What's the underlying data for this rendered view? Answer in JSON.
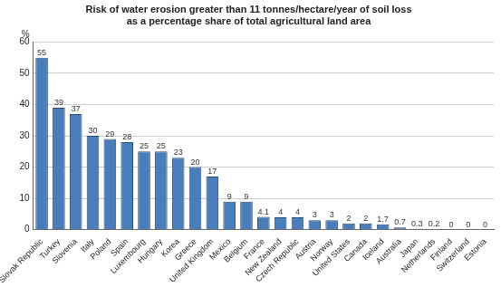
{
  "chart_data": {
    "type": "bar",
    "title": [
      "Risk of water erosion greater than 11 tonnes/hectare/year of soil loss",
      "as a percentage share of total agricultural land area"
    ],
    "ylabel": "%",
    "categories": [
      "Slovak Republic",
      "Turkey",
      "Slovenia",
      "Italy",
      "Poland",
      "Spain",
      "Luxembourg",
      "Hungary",
      "Korea",
      "Greece",
      "United Kingdom",
      "Mexico",
      "Belgium",
      "France",
      "New Zealand",
      "Czech Republic",
      "Austria",
      "Norway",
      "United States",
      "Canada",
      "Iceland",
      "Australia",
      "Japan",
      "Netherlands",
      "Finland",
      "Switzerland",
      "Estonia"
    ],
    "values": [
      55,
      39,
      37,
      30,
      29,
      28,
      25,
      25,
      23,
      20,
      17,
      9,
      9,
      4.1,
      4,
      4,
      3,
      3,
      2,
      2,
      1.7,
      0.7,
      0.3,
      0.2,
      0,
      0,
      0
    ],
    "color": "#4a7ebb",
    "ylim": [
      0,
      60
    ],
    "yticks": [
      0,
      10,
      20,
      30,
      40,
      50,
      60
    ],
    "grid": true,
    "data_labels": true
  }
}
